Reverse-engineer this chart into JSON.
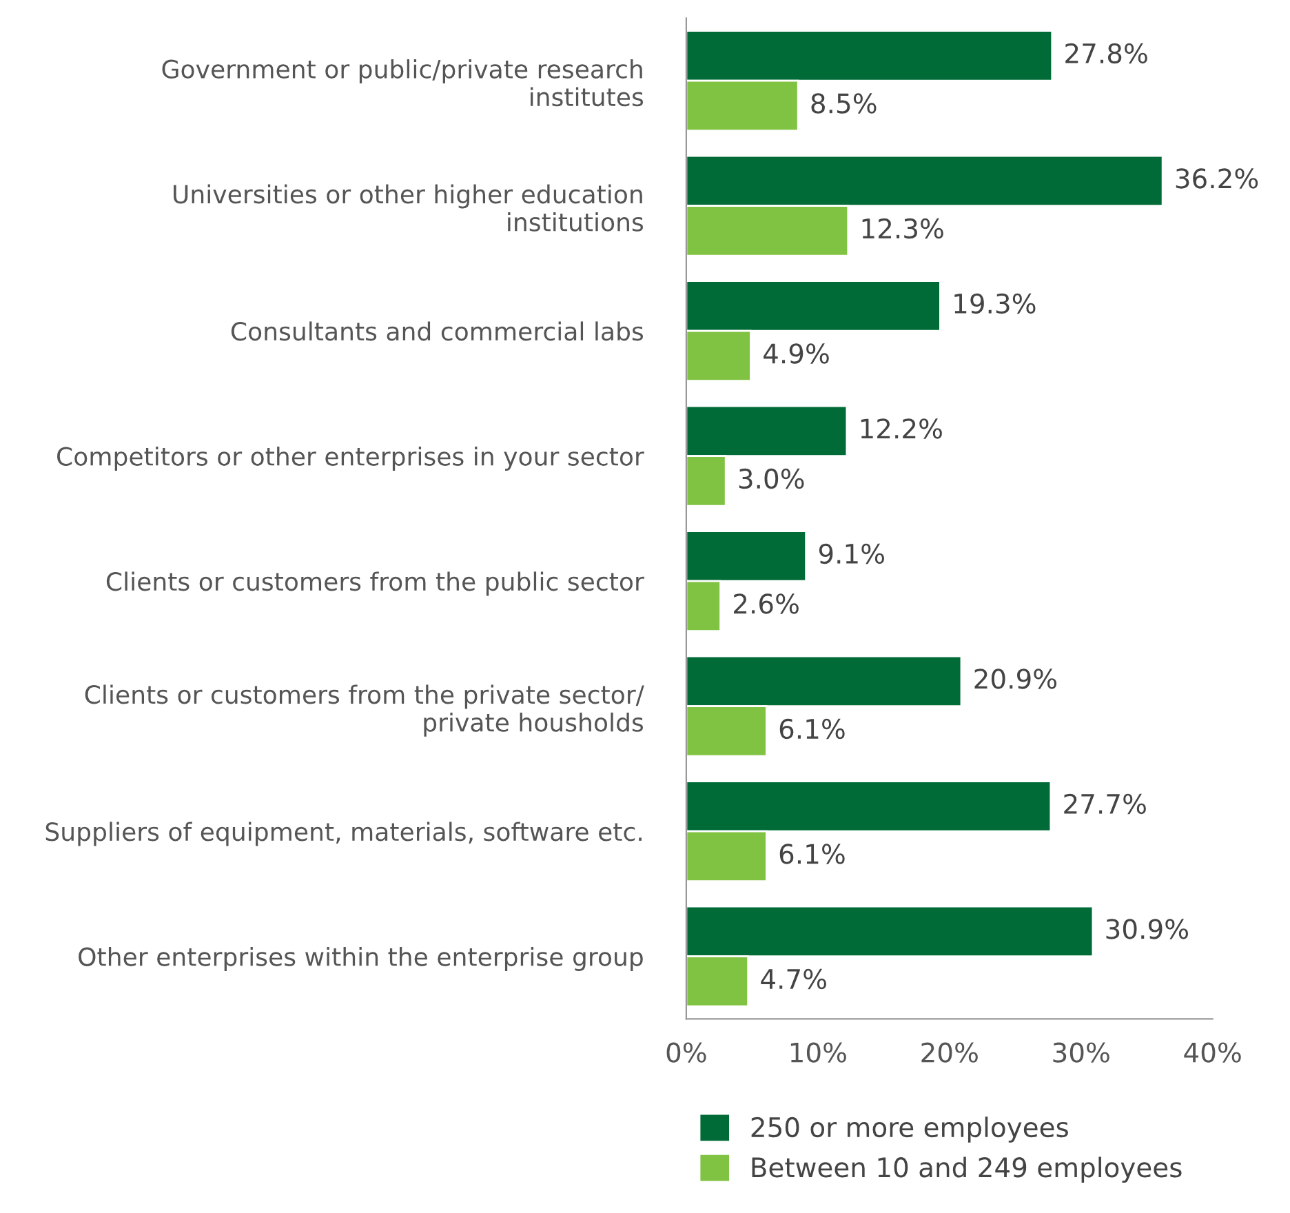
{
  "chart_data": {
    "type": "bar",
    "orientation": "horizontal",
    "categories": [
      "Government or public/private research\ninstitutes",
      "Universities or other higher education\ninstitutions",
      "Consultants and commercial labs",
      "Competitors or other enterprises in your sector",
      "Clients or customers from the public sector",
      "Clients or customers from the private sector/\nprivate housholds",
      "Suppliers of equipment, materials, software etc.",
      "Other enterprises within the enterprise group"
    ],
    "series": [
      {
        "name": "250 or more employees",
        "color": "#006b36",
        "values": [
          27.8,
          36.2,
          19.3,
          12.2,
          9.1,
          20.9,
          27.7,
          30.9
        ],
        "value_labels": [
          "27.8%",
          "36.2%",
          "19.3%",
          "12.2%",
          "9.1%",
          "20.9%",
          "27.7%",
          "30.9%"
        ]
      },
      {
        "name": "Between 10 and 249 employees",
        "color": "#80c242",
        "values": [
          8.5,
          12.3,
          4.9,
          3.0,
          2.6,
          6.1,
          6.1,
          4.7
        ],
        "value_labels": [
          "8.5%",
          "12.3%",
          "4.9%",
          "3.0%",
          "2.6%",
          "6.1%",
          "6.1%",
          "4.7%"
        ]
      }
    ],
    "xlim": [
      0,
      40
    ],
    "xticks": [
      {
        "value": 0,
        "label": "0%"
      },
      {
        "value": 10,
        "label": "10%"
      },
      {
        "value": 20,
        "label": "20%"
      },
      {
        "value": 30,
        "label": "30%"
      },
      {
        "value": 40,
        "label": "40%"
      }
    ],
    "legend": "bottom",
    "grid": false
  }
}
